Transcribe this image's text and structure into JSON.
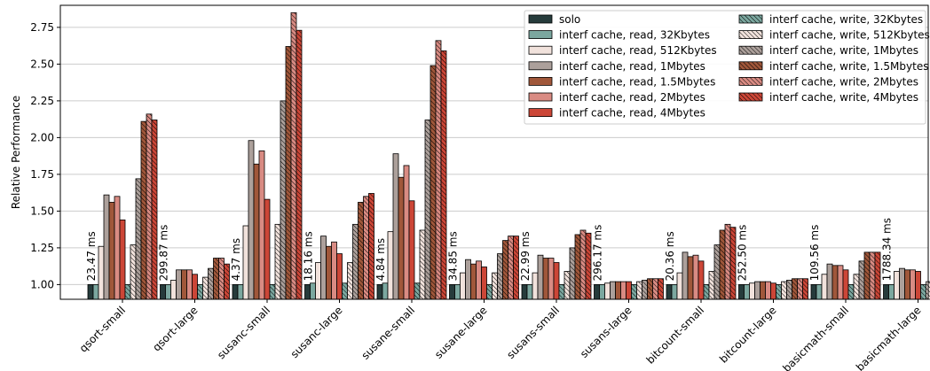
{
  "chart_data": {
    "type": "bar",
    "title": "",
    "xlabel": "",
    "ylabel": "Relative Performance",
    "ylim": [
      0.9,
      2.9
    ],
    "yticks": [
      1.0,
      1.25,
      1.5,
      1.75,
      2.0,
      2.25,
      2.5,
      2.75
    ],
    "ytick_labels": [
      "1.00",
      "1.25",
      "1.50",
      "1.75",
      "2.00",
      "2.25",
      "2.50",
      "2.75"
    ],
    "grid": "horizontal",
    "legend_position": "top-right",
    "categories": [
      "qsort-small",
      "qsort-large",
      "susanc-small",
      "susanc-large",
      "susane-small",
      "susane-large",
      "susans-small",
      "susans-large",
      "bitcount-small",
      "bitcount-large",
      "basicmath-small",
      "basicmath-large"
    ],
    "solo_labels": [
      "23.47 ms",
      "299.87 ms",
      "4.37 ms",
      "18.16 ms",
      "4.84 ms",
      "34.85 ms",
      "22.99 ms",
      "296.17 ms",
      "20.36 ms",
      "252.50 ms",
      "109.56 ms",
      "1788.34 ms"
    ],
    "series": [
      {
        "name": "solo",
        "color": "#263b3b",
        "hatch": false,
        "values": [
          1,
          1,
          1,
          1,
          1,
          1,
          1,
          1,
          1,
          1,
          1,
          1
        ]
      },
      {
        "name": "interf cache, read, 32Kbytes",
        "color": "#7ba79f",
        "hatch": false,
        "values": [
          1.0,
          1.0,
          1.0,
          1.01,
          1.01,
          1.0,
          1.0,
          1.0,
          1.0,
          1.0,
          1.0,
          1.0
        ]
      },
      {
        "name": "interf cache, read, 512Kbytes",
        "color": "#f1e2dc",
        "hatch": false,
        "values": [
          1.26,
          1.03,
          1.4,
          1.15,
          1.36,
          1.08,
          1.08,
          1.01,
          1.08,
          1.01,
          1.07,
          1.09
        ]
      },
      {
        "name": "interf cache, read, 1Mbytes",
        "color": "#aca09b",
        "hatch": false,
        "values": [
          1.61,
          1.1,
          1.98,
          1.33,
          1.89,
          1.17,
          1.2,
          1.02,
          1.22,
          1.02,
          1.14,
          1.11
        ]
      },
      {
        "name": "interf cache, read, 1.5Mbytes",
        "color": "#a0573a",
        "hatch": false,
        "values": [
          1.56,
          1.1,
          1.82,
          1.26,
          1.73,
          1.14,
          1.18,
          1.02,
          1.19,
          1.02,
          1.13,
          1.1
        ]
      },
      {
        "name": "interf cache, read, 2Mbytes",
        "color": "#d98b83",
        "hatch": false,
        "values": [
          1.6,
          1.1,
          1.91,
          1.29,
          1.81,
          1.16,
          1.18,
          1.02,
          1.2,
          1.02,
          1.13,
          1.1
        ]
      },
      {
        "name": "interf cache, read, 4Mbytes",
        "color": "#cc4637",
        "hatch": false,
        "values": [
          1.44,
          1.07,
          1.58,
          1.21,
          1.57,
          1.12,
          1.15,
          1.02,
          1.16,
          1.01,
          1.1,
          1.09
        ]
      },
      {
        "name": "interf cache, write, 32Kbytes",
        "color": "#7ba79f",
        "hatch": true,
        "values": [
          1.0,
          1.0,
          1.0,
          1.01,
          1.01,
          1.0,
          1.0,
          1.0,
          1.0,
          1.0,
          1.0,
          1.0
        ]
      },
      {
        "name": "interf cache, write, 512Kbytes",
        "color": "#f1e2dc",
        "hatch": true,
        "values": [
          1.27,
          1.05,
          1.41,
          1.15,
          1.37,
          1.08,
          1.09,
          1.02,
          1.09,
          1.02,
          1.07,
          1.02
        ]
      },
      {
        "name": "interf cache, write, 1Mbytes",
        "color": "#aca09b",
        "hatch": true,
        "values": [
          1.72,
          1.11,
          2.25,
          1.41,
          2.12,
          1.21,
          1.25,
          1.03,
          1.27,
          1.03,
          1.16,
          1.1
        ]
      },
      {
        "name": "interf cache, write, 1.5Mbytes",
        "color": "#a0573a",
        "hatch": true,
        "values": [
          2.11,
          1.18,
          2.62,
          1.56,
          2.49,
          1.3,
          1.34,
          1.04,
          1.37,
          1.04,
          1.22,
          1.19
        ]
      },
      {
        "name": "interf cache, write, 2Mbytes",
        "color": "#d98b83",
        "hatch": true,
        "values": [
          2.16,
          1.18,
          2.85,
          1.6,
          2.66,
          1.33,
          1.37,
          1.04,
          1.41,
          1.04,
          1.22,
          1.19
        ]
      },
      {
        "name": "interf cache, write, 4Mbytes",
        "color": "#cc4637",
        "hatch": true,
        "values": [
          2.12,
          1.14,
          2.73,
          1.62,
          2.59,
          1.33,
          1.35,
          1.04,
          1.39,
          1.04,
          1.22,
          1.1
        ]
      }
    ]
  }
}
